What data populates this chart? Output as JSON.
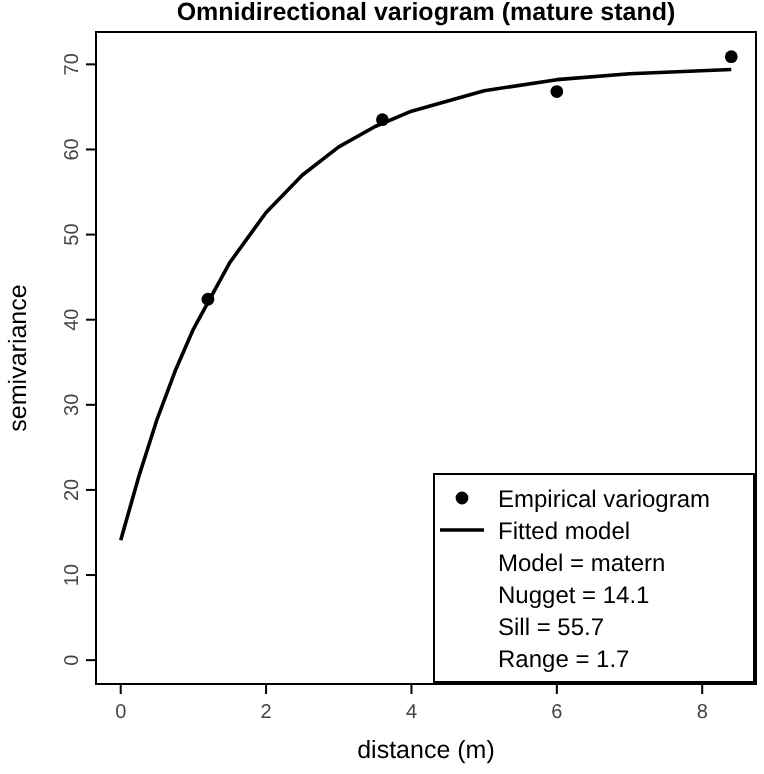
{
  "chart_data": {
    "type": "scatter",
    "title": "Omnidirectional variogram (mature stand)",
    "xlabel": "distance (m)",
    "ylabel": "semivariance",
    "xlim": [
      -0.34,
      8.74
    ],
    "ylim": [
      -2.8,
      73.8
    ],
    "xticks": [
      0,
      2,
      4,
      6,
      8
    ],
    "yticks": [
      0,
      10,
      20,
      30,
      40,
      50,
      60,
      70
    ],
    "series": [
      {
        "name": "Empirical variogram",
        "color": "#000000",
        "marker": "circle",
        "x": [
          1.2,
          3.6,
          6.0,
          8.4
        ],
        "values": [
          42.4,
          63.5,
          66.8,
          70.9
        ]
      },
      {
        "name": "Fitted model",
        "type": "line",
        "color": "#000000",
        "marker": "none",
        "line_style": "solid",
        "x": [
          0,
          0.25,
          0.5,
          0.75,
          1,
          1.5,
          2,
          2.5,
          3,
          3.5,
          4,
          5,
          6,
          7,
          8.4
        ],
        "values": [
          14.1,
          21.6,
          28.3,
          34.0,
          38.9,
          46.7,
          52.6,
          57.0,
          60.3,
          62.7,
          64.5,
          66.9,
          68.2,
          68.9,
          69.4
        ]
      }
    ],
    "legend": "bottom right",
    "grid": false,
    "annotations": [
      "Model = matern",
      "Nugget = 14.1",
      "Sill = 55.7",
      "Range = 1.7"
    ]
  }
}
